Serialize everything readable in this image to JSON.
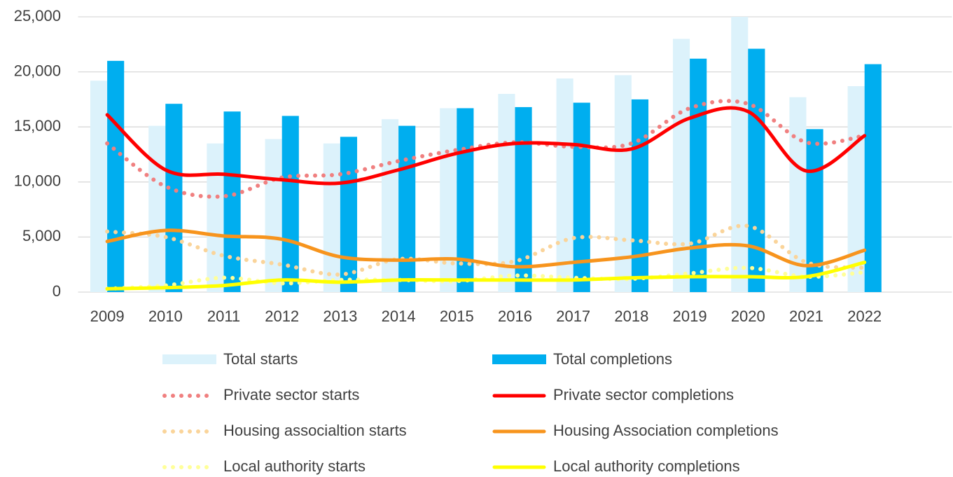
{
  "chart_data": {
    "type": "bar_line",
    "categories": [
      "2009",
      "2010",
      "2011",
      "2012",
      "2013",
      "2014",
      "2015",
      "2016",
      "2017",
      "2018",
      "2019",
      "2020",
      "2021",
      "2022"
    ],
    "series": [
      {
        "name": "Total starts",
        "style": "bar",
        "color": "#dcf2fb",
        "values": [
          19200,
          15100,
          13500,
          13900,
          13500,
          15700,
          16700,
          18000,
          19400,
          19700,
          23000,
          25000,
          17700,
          18700
        ]
      },
      {
        "name": "Total completions",
        "style": "bar",
        "color": "#00aeef",
        "values": [
          21000,
          17100,
          16400,
          16000,
          14100,
          15100,
          16700,
          16800,
          17200,
          17500,
          21200,
          22100,
          14800,
          20700
        ]
      },
      {
        "name": "Private sector starts",
        "style": "dotted",
        "color": "#f08080",
        "values": [
          13500,
          9600,
          8700,
          10400,
          10700,
          11900,
          12900,
          13600,
          13200,
          13500,
          16700,
          17100,
          13600,
          14200
        ]
      },
      {
        "name": "Private sector completions",
        "style": "solid",
        "color": "#ff0000",
        "values": [
          16100,
          11100,
          10700,
          10200,
          9900,
          11100,
          12600,
          13500,
          13400,
          13000,
          15800,
          16400,
          11000,
          14200
        ]
      },
      {
        "name": "Housing associaltion starts",
        "style": "dotted",
        "color": "#fad49a",
        "values": [
          5500,
          5000,
          3300,
          2500,
          1600,
          3000,
          2600,
          2800,
          4900,
          4700,
          4400,
          6000,
          2700,
          2200
        ]
      },
      {
        "name": "Housing Association completions",
        "style": "solid",
        "color": "#f7941d",
        "values": [
          4600,
          5600,
          5100,
          4800,
          3200,
          2900,
          3000,
          2300,
          2700,
          3200,
          4000,
          4200,
          2400,
          3800
        ]
      },
      {
        "name": "Local authority starts",
        "style": "dotted",
        "color": "#ffff99",
        "values": [
          300,
          600,
          1300,
          800,
          1100,
          1100,
          1000,
          1500,
          1300,
          1200,
          1700,
          2200,
          1400,
          1800
        ]
      },
      {
        "name": "Local authority completions",
        "style": "solid",
        "color": "#ffff00",
        "values": [
          300,
          400,
          600,
          1100,
          900,
          1100,
          1100,
          1100,
          1100,
          1300,
          1400,
          1400,
          1400,
          2700
        ]
      }
    ],
    "ylim": [
      0,
      25000
    ],
    "yticks": [
      0,
      {
        "value": 5000,
        "label": "5,000"
      },
      {
        "value": 10000,
        "label": "10,000"
      },
      {
        "value": 15000,
        "label": "15,000"
      },
      {
        "value": 20000,
        "label": "20,000"
      },
      {
        "value": 25000,
        "label": "25,000"
      }
    ],
    "grid": true,
    "legend": "bottom"
  }
}
